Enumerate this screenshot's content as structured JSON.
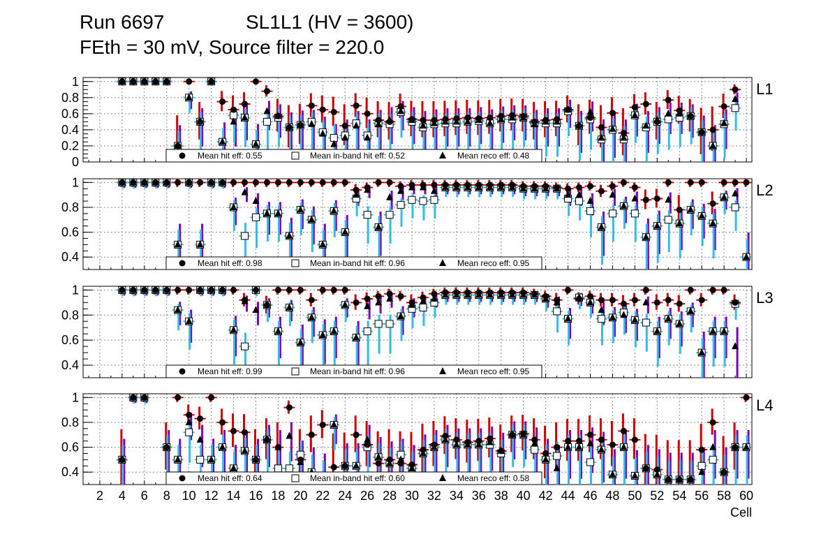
{
  "title": {
    "run": "Run 6697",
    "chamber": "SL1L1 (HV = 3600)",
    "subtitle": "FEth = 30 mV, Source filter = 220.0"
  },
  "colors": {
    "hit_error": "#cc0000",
    "inband_error": "#33bbee",
    "reco_error": "#7700bb",
    "marker": "#000000",
    "grid": "#888888"
  },
  "chart_data": [
    {
      "type": "scatter",
      "panel": "L1",
      "ylim": [
        0,
        1.05
      ],
      "yticks": [
        "0",
        "0.2",
        "0.4",
        "0.6",
        "0.8",
        "1"
      ],
      "legend": {
        "hit": "Mean hit  eff: 0.55",
        "inband": "Mean in-band hit eff: 0.52",
        "reco": "Mean reco eff: 0.48"
      },
      "x": [
        4,
        5,
        6,
        7,
        8,
        9,
        10,
        11,
        12,
        13,
        14,
        15,
        16,
        17,
        18,
        19,
        20,
        21,
        22,
        23,
        24,
        25,
        26,
        27,
        28,
        29,
        30,
        31,
        32,
        33,
        34,
        35,
        36,
        37,
        38,
        39,
        40,
        41,
        42,
        43,
        44,
        45,
        46,
        47,
        48,
        49,
        50,
        51,
        52,
        53,
        54,
        55,
        56,
        57,
        58,
        59
      ],
      "hit": [
        1,
        1,
        1,
        1,
        1,
        0.2,
        1,
        0.5,
        1,
        0.75,
        0.65,
        0.72,
        1,
        0.88,
        0.57,
        0.43,
        0.46,
        0.7,
        0.65,
        0.62,
        0.45,
        0.7,
        0.6,
        0.52,
        0.5,
        0.69,
        0.53,
        0.52,
        0.52,
        0.53,
        0.54,
        0.55,
        0.54,
        0.55,
        0.57,
        0.58,
        0.57,
        0.5,
        0.52,
        0.53,
        0.65,
        0.45,
        0.55,
        0.43,
        0.61,
        0.36,
        0.68,
        0.72,
        0.5,
        0.77,
        0.64,
        0.57,
        0.37,
        0.4,
        0.69,
        0.9
      ],
      "inband": [
        1,
        1,
        1,
        1,
        1,
        0.2,
        0.8,
        0.5,
        1,
        0.25,
        0.58,
        0.55,
        0.22,
        0.5,
        0.55,
        0.43,
        0.46,
        0.5,
        0.37,
        0.3,
        0.33,
        0.48,
        0.33,
        0.48,
        0.47,
        0.62,
        0.5,
        0.43,
        0.47,
        0.48,
        0.48,
        0.5,
        0.51,
        0.48,
        0.53,
        0.53,
        0.55,
        0.48,
        0.48,
        0.48,
        0.63,
        0.45,
        0.53,
        0.28,
        0.4,
        0.28,
        0.58,
        0.43,
        0.5,
        0.53,
        0.55,
        0.57,
        0.37,
        0.2,
        0.47,
        0.67
      ],
      "reco": [
        1,
        1,
        1,
        1,
        1,
        0.2,
        0.8,
        0.5,
        1,
        0.25,
        0.5,
        0.55,
        0.22,
        0.63,
        0.57,
        0.43,
        0.46,
        0.47,
        0.35,
        0.22,
        0.3,
        0.45,
        0.3,
        0.47,
        0.52,
        0.63,
        0.52,
        0.45,
        0.48,
        0.5,
        0.5,
        0.5,
        0.52,
        0.48,
        0.53,
        0.55,
        0.55,
        0.47,
        0.5,
        0.5,
        0.65,
        0.45,
        0.62,
        0.3,
        0.41,
        0.3,
        0.58,
        0.45,
        0.52,
        0.6,
        0.6,
        0.57,
        0.37,
        0.2,
        0.48,
        0.78
      ]
    },
    {
      "type": "scatter",
      "panel": "L2",
      "ylim": [
        0.3,
        1.03
      ],
      "yticks": [
        "0.4",
        "0.6",
        "0.8",
        "1"
      ],
      "legend": {
        "hit": "Mean hit  eff: 0.98",
        "inband": "Mean in-band hit eff: 0.96",
        "reco": "Mean reco eff: 0.95"
      },
      "x": [
        4,
        5,
        6,
        7,
        8,
        9,
        10,
        11,
        12,
        13,
        14,
        15,
        16,
        17,
        18,
        19,
        20,
        21,
        22,
        23,
        24,
        25,
        26,
        27,
        28,
        29,
        30,
        31,
        32,
        33,
        34,
        35,
        36,
        37,
        38,
        39,
        40,
        41,
        42,
        43,
        44,
        45,
        46,
        47,
        48,
        49,
        50,
        51,
        52,
        53,
        54,
        55,
        56,
        57,
        58,
        59,
        60
      ],
      "hit": [
        1,
        1,
        1,
        1,
        1,
        1,
        1,
        1,
        1,
        1,
        1,
        1,
        1,
        1,
        1,
        1,
        1,
        1,
        1,
        1,
        1,
        0.94,
        0.96,
        1,
        1,
        0.97,
        0.98,
        0.98,
        0.98,
        0.98,
        0.98,
        0.98,
        0.98,
        0.98,
        0.98,
        0.98,
        0.97,
        0.97,
        0.97,
        0.96,
        0.95,
        0.96,
        0.97,
        0.93,
        0.97,
        1,
        0.96,
        0.86,
        0.87,
        1,
        0.78,
        1,
        1,
        0.83,
        1,
        1,
        1
      ],
      "inband": [
        1,
        1,
        1,
        1,
        1,
        0.5,
        1,
        0.5,
        1,
        1,
        0.8,
        0.57,
        0.72,
        0.75,
        0.75,
        0.57,
        0.78,
        0.7,
        0.5,
        0.77,
        0.6,
        0.87,
        0.74,
        0.64,
        0.74,
        0.82,
        0.86,
        0.85,
        0.86,
        0.96,
        0.96,
        0.96,
        0.96,
        0.96,
        0.96,
        0.96,
        0.95,
        0.95,
        0.95,
        0.95,
        0.87,
        0.85,
        0.77,
        0.64,
        0.75,
        0.81,
        0.75,
        0.56,
        0.65,
        0.7,
        0.67,
        0.78,
        0.73,
        0.67,
        0.88,
        0.8,
        0.4
      ],
      "reco": [
        1,
        1,
        1,
        1,
        1,
        0.5,
        1,
        0.5,
        1,
        1,
        0.8,
        0.92,
        0.85,
        0.75,
        0.75,
        0.57,
        0.78,
        0.7,
        0.5,
        0.77,
        0.6,
        0.9,
        0.94,
        0.64,
        0.88,
        0.93,
        0.96,
        0.96,
        0.93,
        0.96,
        0.96,
        0.96,
        0.96,
        0.96,
        0.96,
        0.96,
        0.95,
        0.95,
        0.95,
        0.95,
        0.9,
        0.9,
        0.85,
        0.64,
        0.9,
        0.81,
        0.87,
        0.56,
        0.65,
        0.86,
        0.67,
        0.78,
        0.73,
        0.67,
        0.88,
        0.91,
        0.4
      ]
    },
    {
      "type": "scatter",
      "panel": "L3",
      "ylim": [
        0.3,
        1.03
      ],
      "yticks": [
        "0.4",
        "0.6",
        "0.8",
        "1"
      ],
      "legend": {
        "hit": "Mean hit  eff: 0.99",
        "inband": "Mean in-band hit eff: 0.96",
        "reco": "Mean reco eff: 0.95"
      },
      "x": [
        4,
        5,
        6,
        7,
        8,
        9,
        10,
        11,
        12,
        13,
        14,
        15,
        16,
        17,
        18,
        19,
        20,
        21,
        22,
        23,
        24,
        25,
        26,
        27,
        28,
        29,
        30,
        31,
        32,
        33,
        34,
        35,
        36,
        37,
        38,
        39,
        40,
        41,
        42,
        43,
        44,
        45,
        46,
        47,
        48,
        49,
        50,
        51,
        52,
        53,
        54,
        55,
        56,
        57,
        58,
        59
      ],
      "hit": [
        1,
        1,
        1,
        1,
        1,
        1,
        1,
        1,
        1,
        1,
        1,
        0.92,
        1,
        0.88,
        1,
        1,
        1,
        0.92,
        1,
        1,
        1,
        0.9,
        0.93,
        0.95,
        0.97,
        0.95,
        0.9,
        0.94,
        0.97,
        0.98,
        0.98,
        0.98,
        0.98,
        0.98,
        0.98,
        0.98,
        0.98,
        0.97,
        0.95,
        0.92,
        1,
        0.93,
        0.95,
        0.92,
        0.92,
        0.89,
        0.92,
        1,
        0.9,
        0.92,
        0.89,
        1,
        0.92,
        1,
        1,
        0.9
      ],
      "inband": [
        1,
        1,
        1,
        1,
        1,
        0.84,
        0.75,
        1,
        1,
        1,
        0.68,
        0.55,
        1,
        0.88,
        0.67,
        0.86,
        0.58,
        0.78,
        0.64,
        0.67,
        0.88,
        0.62,
        0.67,
        0.73,
        0.73,
        0.79,
        0.85,
        0.86,
        0.9,
        0.96,
        0.96,
        0.96,
        0.96,
        0.96,
        0.96,
        0.96,
        0.96,
        0.96,
        0.93,
        0.83,
        0.77,
        0.94,
        0.9,
        0.77,
        0.78,
        0.82,
        0.76,
        0.74,
        0.67,
        0.77,
        0.73,
        0.83,
        0.5,
        0.67,
        0.67,
        0.89
      ],
      "reco": [
        1,
        1,
        1,
        1,
        1,
        0.84,
        0.75,
        1,
        1,
        1,
        0.68,
        0.91,
        0.84,
        0.88,
        0.67,
        0.86,
        0.58,
        0.78,
        0.64,
        0.67,
        0.88,
        0.62,
        0.87,
        0.9,
        0.93,
        0.79,
        0.88,
        0.91,
        0.93,
        0.96,
        0.96,
        0.96,
        0.96,
        0.96,
        0.96,
        0.96,
        0.96,
        0.96,
        0.93,
        0.9,
        0.77,
        0.94,
        0.9,
        0.84,
        0.78,
        0.8,
        0.76,
        0.9,
        0.67,
        0.77,
        0.73,
        0.83,
        0.5,
        0.67,
        0.67,
        0.55
      ]
    },
    {
      "type": "scatter",
      "panel": "L4",
      "ylim": [
        0.3,
        1.03
      ],
      "yticks": [
        "0.4",
        "0.6",
        "0.8",
        "1"
      ],
      "legend": {
        "hit": "Mean hit  eff: 0.64",
        "inband": "Mean in-band hit eff: 0.60",
        "reco": "Mean reco eff: 0.58"
      },
      "x": [
        4,
        5,
        6,
        8,
        9,
        10,
        11,
        12,
        13,
        14,
        15,
        16,
        17,
        18,
        19,
        20,
        21,
        22,
        23,
        24,
        25,
        26,
        27,
        28,
        29,
        30,
        31,
        32,
        33,
        34,
        35,
        36,
        37,
        38,
        39,
        40,
        41,
        42,
        43,
        44,
        45,
        46,
        47,
        48,
        49,
        50,
        51,
        52,
        53,
        54,
        55,
        56,
        57,
        58,
        59,
        60
      ],
      "hit": [
        0.5,
        1,
        1,
        0.6,
        1,
        0.86,
        0.83,
        1,
        0.8,
        0.73,
        0.72,
        0.5,
        0.66,
        0.6,
        0.92,
        0.5,
        0.7,
        0.78,
        0.44,
        0.45,
        0.7,
        0.62,
        0.47,
        0.5,
        0.47,
        0.46,
        0.58,
        0.62,
        0.69,
        0.66,
        0.64,
        0.65,
        0.67,
        0.57,
        0.7,
        0.71,
        0.66,
        0.55,
        0.6,
        0.65,
        0.65,
        0.7,
        0.66,
        0.62,
        0.73,
        0.66,
        0.43,
        0.42,
        0.34,
        0.34,
        0.34,
        0.58,
        0.8,
        0.4,
        0.6,
        1
      ],
      "inband": [
        0.5,
        1,
        1,
        0.6,
        0.5,
        0.72,
        0.5,
        0.5,
        0.6,
        0.43,
        0.57,
        0.5,
        0.66,
        0.43,
        0.43,
        0.54,
        0.4,
        0.33,
        0.78,
        0.45,
        0.45,
        0.6,
        0.52,
        0.47,
        0.54,
        0.43,
        0.55,
        0.6,
        0.66,
        0.62,
        0.62,
        0.62,
        0.62,
        0.55,
        0.7,
        0.7,
        0.58,
        0.5,
        0.53,
        0.6,
        0.6,
        0.48,
        0.58,
        0.38,
        0.6,
        0.37,
        0.43,
        0.38,
        0.34,
        0.34,
        0.34,
        0.45,
        0.5,
        0.4,
        0.6,
        0.6
      ],
      "reco": [
        0.5,
        1,
        1,
        0.6,
        0.5,
        0.8,
        0.66,
        0.5,
        0.6,
        0.43,
        0.57,
        0.5,
        0.66,
        0.6,
        0.69,
        0.48,
        0.4,
        0.33,
        0.78,
        0.45,
        0.45,
        0.66,
        0.52,
        0.47,
        0.5,
        0.43,
        0.55,
        0.6,
        0.66,
        0.62,
        0.62,
        0.62,
        0.64,
        0.57,
        0.7,
        0.7,
        0.63,
        0.5,
        0.43,
        0.6,
        0.6,
        0.63,
        0.58,
        0.38,
        0.6,
        0.37,
        0.43,
        0.38,
        0.34,
        0.34,
        0.34,
        0.4,
        0.6,
        0.4,
        0.6,
        0.6
      ]
    }
  ],
  "x_axis": {
    "ticks": [
      "2",
      "4",
      "6",
      "8",
      "10",
      "12",
      "14",
      "16",
      "18",
      "20",
      "22",
      "24",
      "26",
      "28",
      "30",
      "32",
      "34",
      "36",
      "38",
      "40",
      "42",
      "44",
      "46",
      "48",
      "50",
      "52",
      "54",
      "56",
      "58",
      "60"
    ],
    "label": "Cell"
  }
}
